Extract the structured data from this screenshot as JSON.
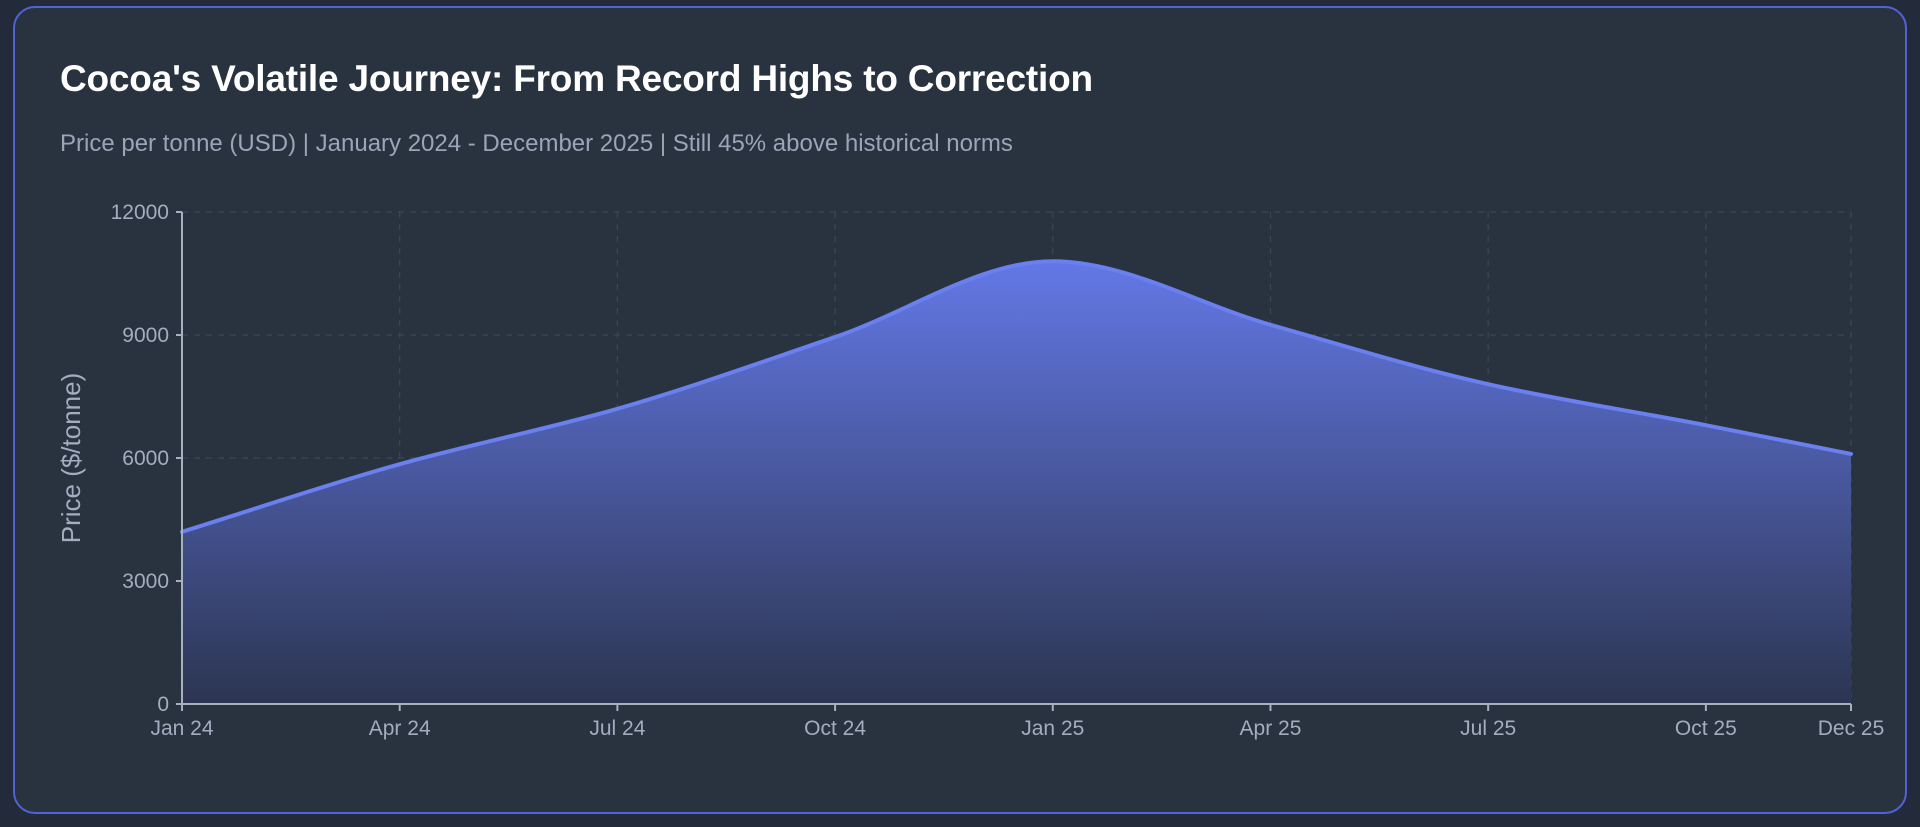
{
  "title": "Cocoa's Volatile Journey: From Record Highs to Correction",
  "subtitle": "Price per tonne (USD) | January 2024 - December 2025 | Still 45% above historical norms",
  "colors": {
    "background": "#232a39",
    "card": "#29323f",
    "card_border": "#4f63d6",
    "line": "#6a7ff0",
    "fill_top": "#6378e6",
    "fill_bottom": "#2c3551",
    "grid": "#3d4657",
    "axis": "#a7b0c0",
    "text_muted": "#a3adbf"
  },
  "chart_data": {
    "type": "area",
    "title": "Cocoa's Volatile Journey: From Record Highs to Correction",
    "subtitle": "Price per tonne (USD) | January 2024 - December 2025 | Still 45% above historical norms",
    "xlabel": "",
    "ylabel": "Price ($/tonne)",
    "x": [
      "Jan 24",
      "Apr 24",
      "Jul 24",
      "Oct 24",
      "Jan 25",
      "Apr 25",
      "Jul 25",
      "Oct 25",
      "Dec 25"
    ],
    "x_months": [
      0,
      3,
      6,
      9,
      12,
      15,
      18,
      21,
      23
    ],
    "values": [
      4200,
      5850,
      7200,
      8950,
      10800,
      9250,
      7800,
      6800,
      6100
    ],
    "yticks": [
      0,
      3000,
      6000,
      9000,
      12000
    ],
    "ylim": [
      0,
      12000
    ],
    "grid": true,
    "legend": "none"
  }
}
